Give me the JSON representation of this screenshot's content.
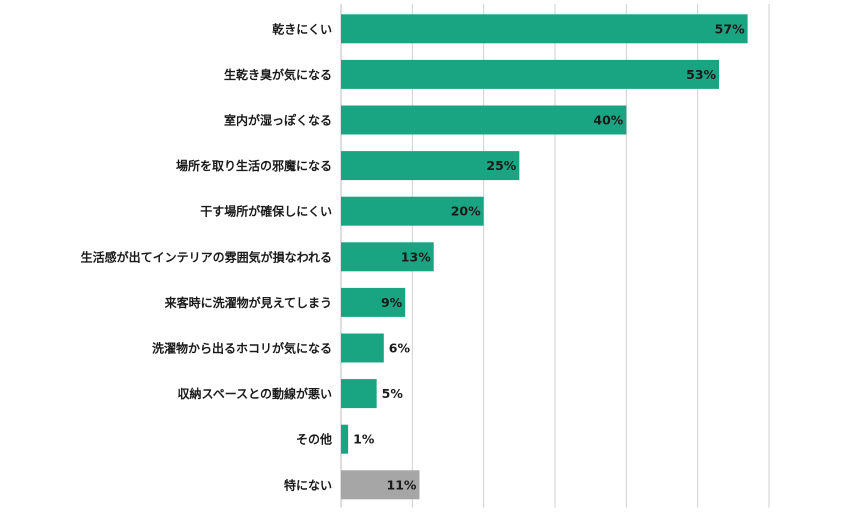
{
  "chart_data": {
    "type": "bar",
    "orientation": "horizontal",
    "categories": [
      "乾きにくい",
      "生乾き臭が気になる",
      "室内が湿っぽくなる",
      "場所を取り生活の邪魔になる",
      "干す場所が確保しにくい",
      "生活感が出てインテリアの雰囲気が損なわれる",
      "来客時に洗濯物が見えてしまう",
      "洗濯物から出るホコリが気になる",
      "収納スペースとの動線が悪い",
      "その他",
      "特にない"
    ],
    "values": [
      57,
      53,
      40,
      25,
      20,
      13,
      9,
      6,
      5,
      1,
      11
    ],
    "value_labels": [
      "57%",
      "53%",
      "40%",
      "25%",
      "20%",
      "13%",
      "9%",
      "6%",
      "5%",
      "1%",
      "11%"
    ],
    "colors": [
      "#1aa582",
      "#1aa582",
      "#1aa582",
      "#1aa582",
      "#1aa582",
      "#1aa582",
      "#1aa582",
      "#1aa582",
      "#1aa582",
      "#1aa582",
      "#a6a6a6"
    ],
    "xticks": [
      0,
      10,
      20,
      30,
      40,
      50,
      60
    ],
    "xlim": [
      0,
      60
    ],
    "grid": true,
    "legend": "none",
    "title": "",
    "xlabel": "",
    "ylabel": ""
  }
}
